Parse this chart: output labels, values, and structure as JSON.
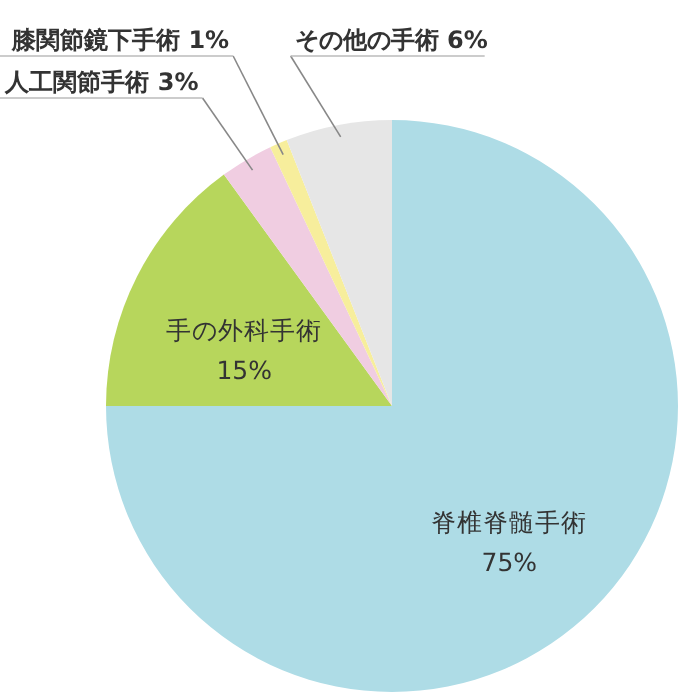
{
  "chart_data": {
    "type": "pie",
    "categories": [
      "脊椎脊髄手術",
      "手の外科手術",
      "人工関節手術",
      "膝関節鏡下手術",
      "その他の手術"
    ],
    "values": [
      75,
      15,
      3,
      1,
      6
    ],
    "value_labels": [
      "75%",
      "15%",
      "3%",
      "1%",
      "6%"
    ],
    "colors": [
      "#aedce6",
      "#b7d65c",
      "#f0cde1",
      "#f7ee9c",
      "#e6e6e6"
    ]
  }
}
